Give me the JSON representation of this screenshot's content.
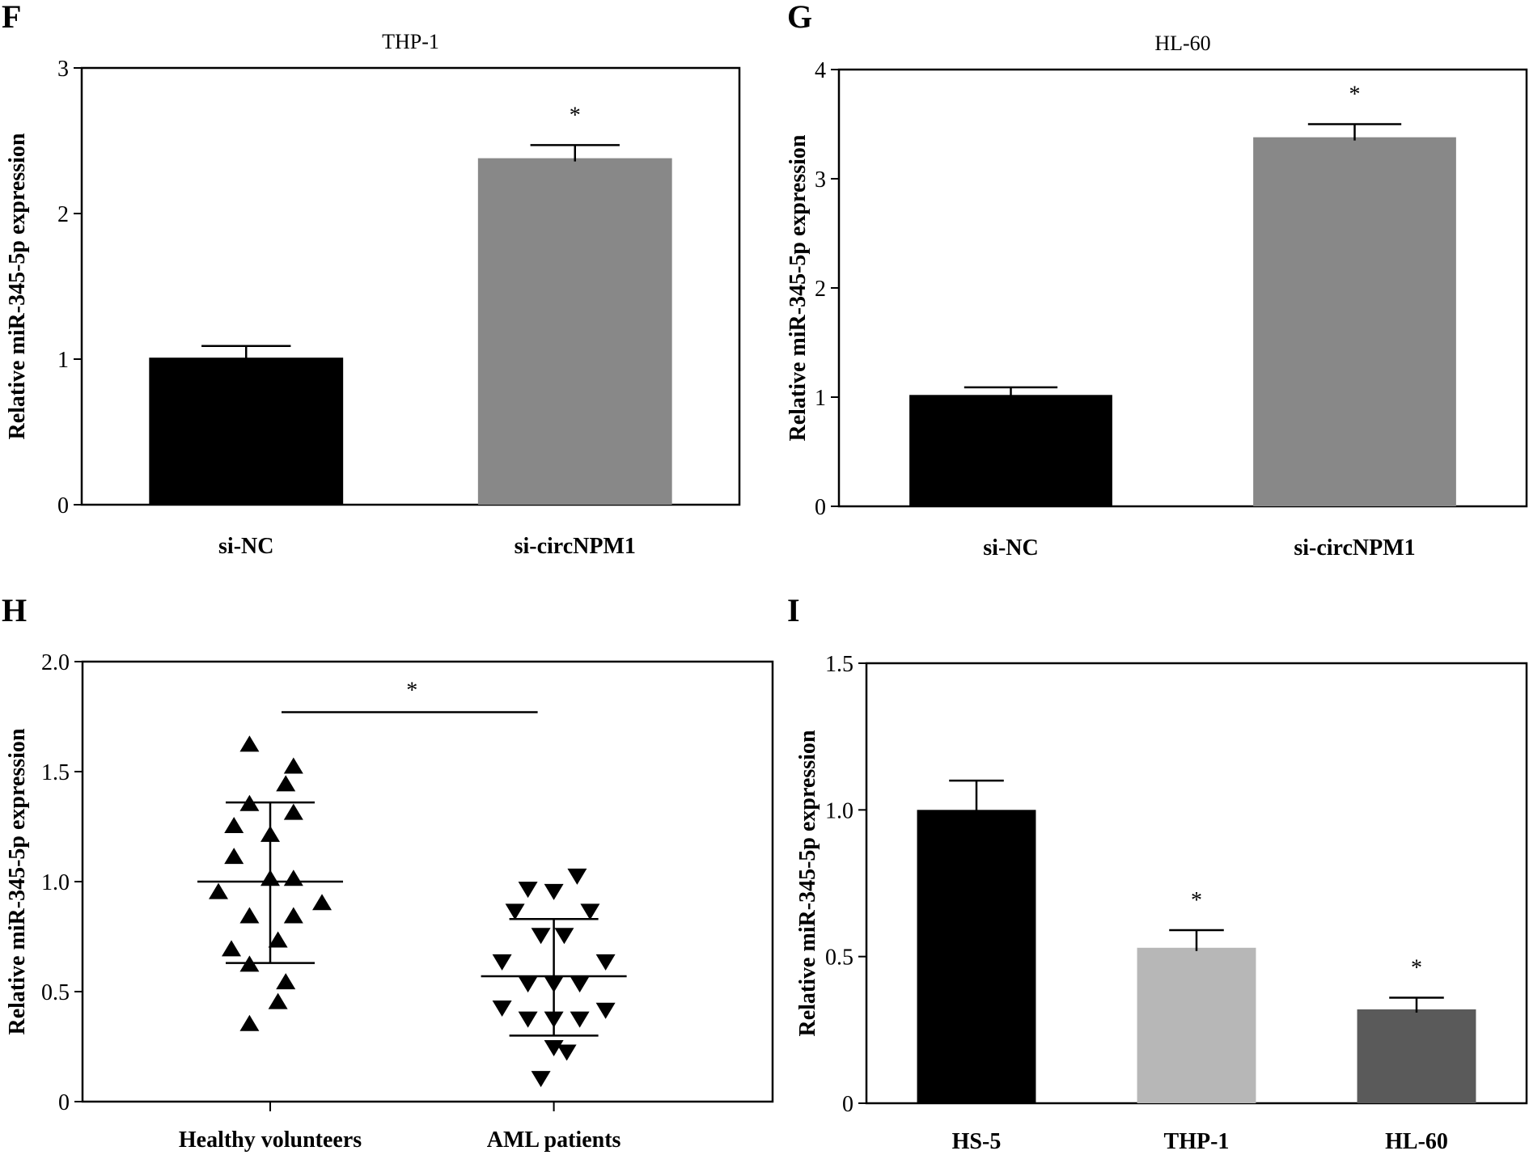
{
  "figure": {
    "panel_labels": [
      "F",
      "G",
      "H",
      "I"
    ]
  },
  "chart_data": [
    {
      "panel": "F",
      "type": "bar",
      "title": "THP-1",
      "xlabel": "",
      "ylabel": "Relative miR-345-5p expression",
      "categories": [
        "si-NC",
        "si-circNPM1"
      ],
      "values": [
        1.01,
        2.38
      ],
      "errors": [
        0.08,
        0.09
      ],
      "colors": [
        "#000000",
        "#888888"
      ],
      "significance": [
        "",
        "*"
      ],
      "ylim": [
        0,
        3
      ],
      "yticks": [
        0,
        1,
        2,
        3
      ],
      "ytick_labels": [
        "0",
        "1",
        "2",
        "3"
      ],
      "grid": false
    },
    {
      "panel": "G",
      "type": "bar",
      "title": "HL-60",
      "xlabel": "",
      "ylabel": "Relative miR-345-5p expression",
      "categories": [
        "si-NC",
        "si-circNPM1"
      ],
      "values": [
        1.02,
        3.38
      ],
      "errors": [
        0.07,
        0.12
      ],
      "colors": [
        "#000000",
        "#888888"
      ],
      "significance": [
        "",
        "*"
      ],
      "ylim": [
        0,
        4
      ],
      "yticks": [
        0,
        1,
        2,
        3,
        4
      ],
      "ytick_labels": [
        "0",
        "1",
        "2",
        "3",
        "4"
      ],
      "grid": false
    },
    {
      "panel": "H",
      "type": "scatter",
      "title": "",
      "xlabel": "",
      "ylabel": "Relative miR-345-5p expression",
      "categories": [
        "Healthy volunteers",
        "AML patients"
      ],
      "series": [
        {
          "name": "Healthy volunteers",
          "marker": "triangle-up",
          "mean": 1.0,
          "sd_upper": 1.36,
          "sd_lower": 0.63,
          "points": [
            {
              "offset": -0.4,
              "y": 1.62
            },
            {
              "offset": 0.45,
              "y": 1.52
            },
            {
              "offset": 0.3,
              "y": 1.44
            },
            {
              "offset": -0.4,
              "y": 1.35
            },
            {
              "offset": 0.45,
              "y": 1.31
            },
            {
              "offset": -0.7,
              "y": 1.25
            },
            {
              "offset": 0.0,
              "y": 1.21
            },
            {
              "offset": -0.7,
              "y": 1.11
            },
            {
              "offset": 0.0,
              "y": 1.01
            },
            {
              "offset": 0.45,
              "y": 1.01
            },
            {
              "offset": -1.0,
              "y": 0.95
            },
            {
              "offset": 1.0,
              "y": 0.9
            },
            {
              "offset": -0.4,
              "y": 0.84
            },
            {
              "offset": 0.45,
              "y": 0.84
            },
            {
              "offset": 0.15,
              "y": 0.73
            },
            {
              "offset": -0.75,
              "y": 0.69
            },
            {
              "offset": -0.4,
              "y": 0.62
            },
            {
              "offset": 0.3,
              "y": 0.54
            },
            {
              "offset": 0.15,
              "y": 0.45
            },
            {
              "offset": -0.4,
              "y": 0.35
            }
          ]
        },
        {
          "name": "AML patients",
          "marker": "triangle-down",
          "mean": 0.57,
          "sd_upper": 0.83,
          "sd_lower": 0.3,
          "points": [
            {
              "offset": 0.45,
              "y": 1.03
            },
            {
              "offset": -0.5,
              "y": 0.97
            },
            {
              "offset": 0.0,
              "y": 0.96
            },
            {
              "offset": -0.75,
              "y": 0.87
            },
            {
              "offset": 0.7,
              "y": 0.87
            },
            {
              "offset": -0.25,
              "y": 0.76
            },
            {
              "offset": 0.2,
              "y": 0.76
            },
            {
              "offset": -1.0,
              "y": 0.64
            },
            {
              "offset": 1.0,
              "y": 0.64
            },
            {
              "offset": -0.5,
              "y": 0.54
            },
            {
              "offset": 0.0,
              "y": 0.54
            },
            {
              "offset": 0.5,
              "y": 0.54
            },
            {
              "offset": -1.0,
              "y": 0.43
            },
            {
              "offset": 1.0,
              "y": 0.42
            },
            {
              "offset": -0.5,
              "y": 0.38
            },
            {
              "offset": 0.0,
              "y": 0.38
            },
            {
              "offset": 0.5,
              "y": 0.38
            },
            {
              "offset": 0.0,
              "y": 0.25
            },
            {
              "offset": 0.25,
              "y": 0.23
            },
            {
              "offset": -0.25,
              "y": 0.11
            }
          ]
        }
      ],
      "significance_bar": {
        "label": "*",
        "y": 1.77
      },
      "ylim": [
        0,
        2.0
      ],
      "yticks": [
        0,
        0.5,
        1.0,
        1.5,
        2.0
      ],
      "ytick_labels": [
        "0",
        "0.5",
        "1.0",
        "1.5",
        "2.0"
      ],
      "grid": false
    },
    {
      "panel": "I",
      "type": "bar",
      "title": "",
      "xlabel": "",
      "ylabel": "Relative miR-345-5p expression",
      "categories": [
        "HS-5",
        "THP-1",
        "HL-60"
      ],
      "values": [
        1.0,
        0.53,
        0.32
      ],
      "errors": [
        0.1,
        0.06,
        0.04
      ],
      "colors": [
        "#000000",
        "#b7b7b7",
        "#5a5a5a"
      ],
      "significance": [
        "",
        "*",
        "*"
      ],
      "ylim": [
        0,
        1.5
      ],
      "yticks": [
        0,
        0.5,
        1.0,
        1.5
      ],
      "ytick_labels": [
        "0",
        "0.5",
        "1.0",
        "1.5"
      ],
      "grid": false
    }
  ]
}
